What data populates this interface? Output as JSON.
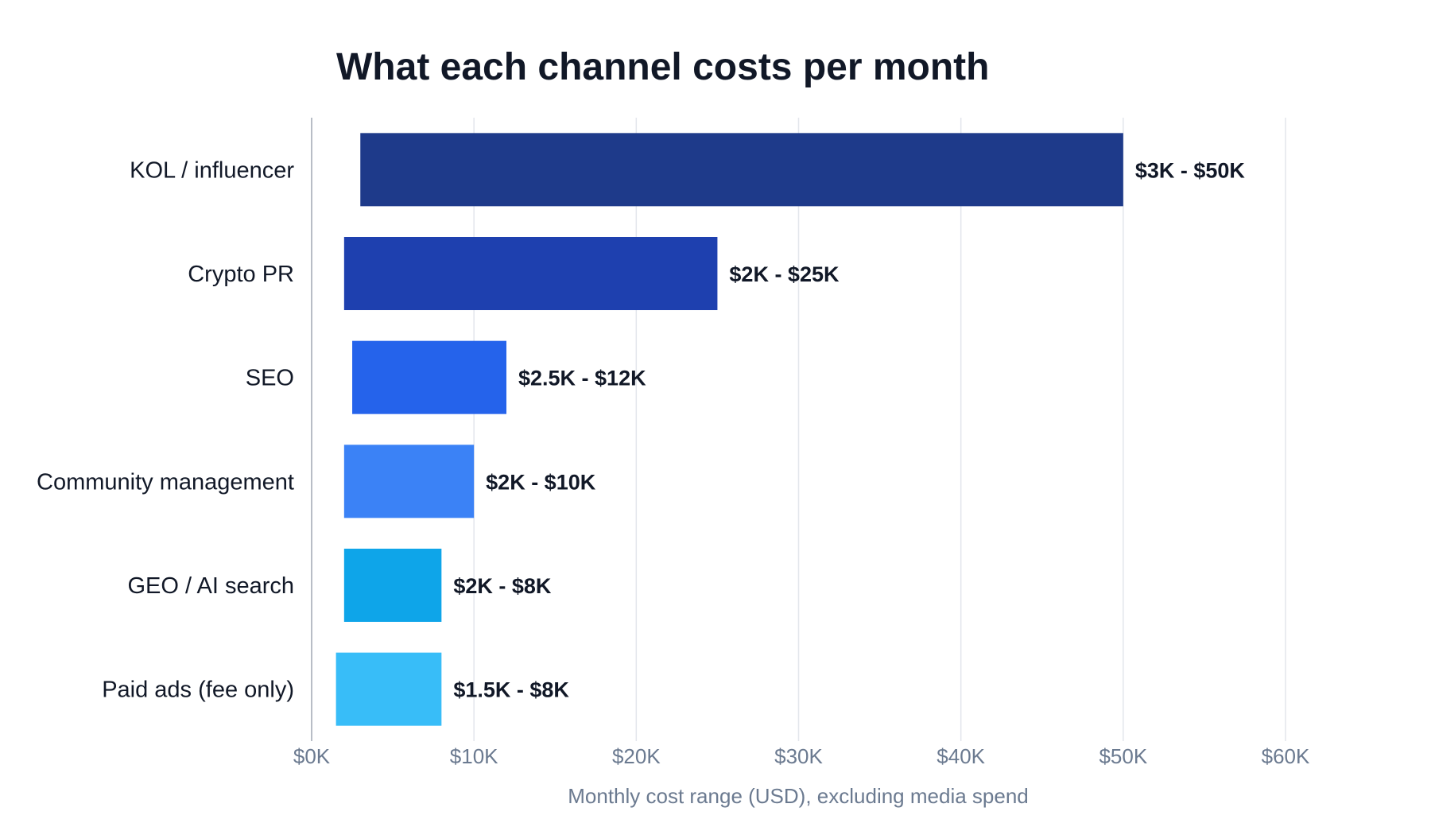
{
  "chart_data": {
    "type": "bar",
    "orientation": "horizontal",
    "title": "What each channel costs per month",
    "xlabel": "Monthly cost range (USD), excluding media spend",
    "ylabel": "",
    "xlim": [
      0,
      60000
    ],
    "x_ticks": [
      0,
      10000,
      20000,
      30000,
      40000,
      50000,
      60000
    ],
    "x_tick_labels": [
      "$0K",
      "$10K",
      "$20K",
      "$30K",
      "$40K",
      "$50K",
      "$60K"
    ],
    "grid": "vertical",
    "legend": "none",
    "categories": [
      "KOL / influencer",
      "Crypto PR",
      "SEO",
      "Community management",
      "GEO / AI search",
      "Paid ads (fee only)"
    ],
    "ranges": [
      {
        "low": 3000,
        "high": 50000,
        "label": "$3K - $50K",
        "color": "#1e3a8a"
      },
      {
        "low": 2000,
        "high": 25000,
        "label": "$2K - $25K",
        "color": "#1e40af"
      },
      {
        "low": 2500,
        "high": 12000,
        "label": "$2.5K - $12K",
        "color": "#2563eb"
      },
      {
        "low": 2000,
        "high": 10000,
        "label": "$2K - $10K",
        "color": "#3b82f6"
      },
      {
        "low": 2000,
        "high": 8000,
        "label": "$2K - $8K",
        "color": "#0ea5e9"
      },
      {
        "low": 1500,
        "high": 8000,
        "label": "$1.5K - $8K",
        "color": "#38bdf8"
      }
    ]
  }
}
